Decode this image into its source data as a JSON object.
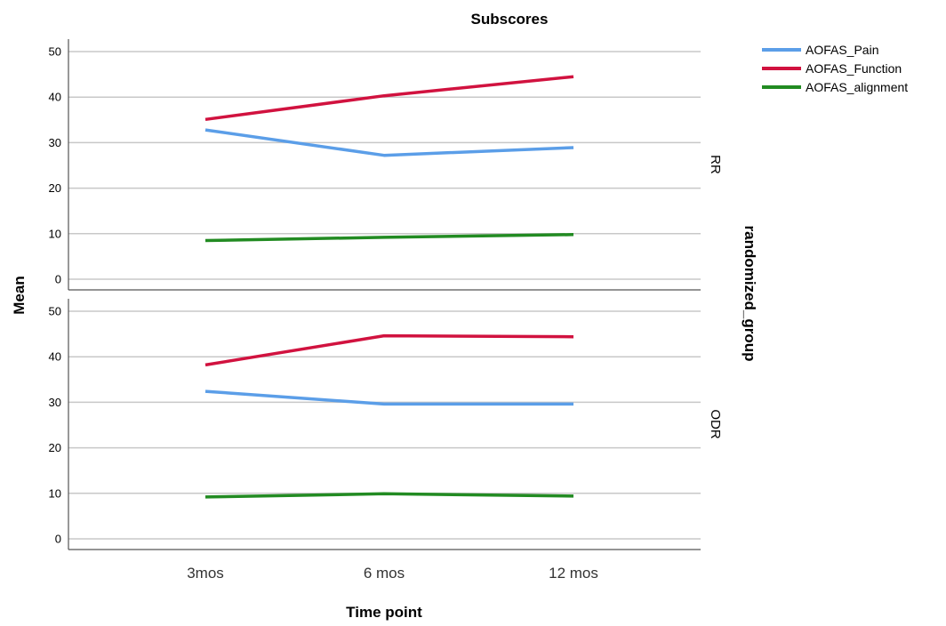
{
  "chart_data": {
    "type": "line",
    "title": "Subscores",
    "xlabel": "Time point",
    "ylabel": "Mean",
    "panel_axis_label": "randomized_group",
    "categories": [
      "3mos",
      "6 mos",
      "12 mos"
    ],
    "ylim": [
      0,
      50
    ],
    "yticks": [
      0,
      10,
      20,
      30,
      40,
      50
    ],
    "grid": true,
    "legend_position": "top-right",
    "series_styles": [
      {
        "name": "AOFAS_Pain",
        "color": "#5b9ee8"
      },
      {
        "name": "AOFAS_Function",
        "color": "#d1123f"
      },
      {
        "name": "AOFAS_alignment",
        "color": "#228b22"
      }
    ],
    "panels": [
      {
        "label": "RR",
        "series": [
          {
            "name": "AOFAS_Pain",
            "values": [
              32.8,
              27.2,
              28.9
            ]
          },
          {
            "name": "AOFAS_Function",
            "values": [
              35.1,
              40.3,
              44.5
            ]
          },
          {
            "name": "AOFAS_alignment",
            "values": [
              8.5,
              9.2,
              9.8
            ]
          }
        ]
      },
      {
        "label": "ODR",
        "series": [
          {
            "name": "AOFAS_Pain",
            "values": [
              32.4,
              29.6,
              29.6
            ]
          },
          {
            "name": "AOFAS_Function",
            "values": [
              38.2,
              44.6,
              44.4
            ]
          },
          {
            "name": "AOFAS_alignment",
            "values": [
              9.2,
              9.9,
              9.4
            ]
          }
        ]
      }
    ]
  }
}
